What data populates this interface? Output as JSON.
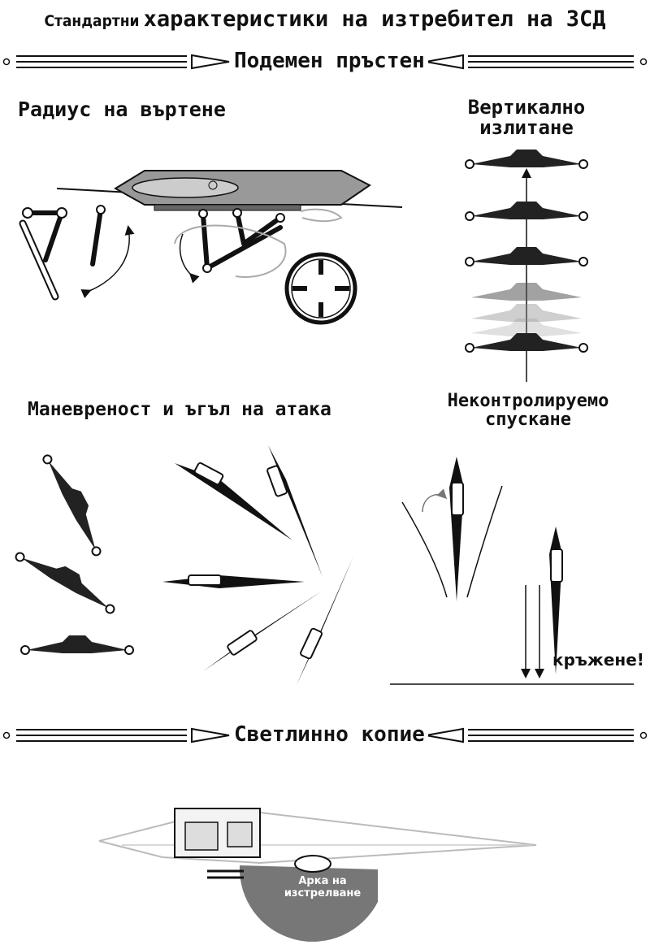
{
  "header": {
    "title_small": "Стандартни",
    "title_big": "характеристики на изтребител на ЗСД"
  },
  "sections": {
    "repulsor": "Подемен пръстен",
    "lightspear": "Светлинно копие"
  },
  "labels": {
    "turn_radius": "Радиус на въртене",
    "vertical_takeoff_line1": "Вертикално",
    "vertical_takeoff_line2": "излитане",
    "maneuver": "Маневреност и ъгъл на атака",
    "uncontrolled_line1": "Неконтролируемо",
    "uncontrolled_line2": "спускане",
    "hover": "кръжене!",
    "fire_arc_line1": "Арка на",
    "fire_arc_line2": "изстрелване"
  },
  "colors": {
    "ink": "#111111",
    "gray_dark": "#555555",
    "gray_mid": "#8a8a8a",
    "gray_light": "#bdbdbd"
  }
}
